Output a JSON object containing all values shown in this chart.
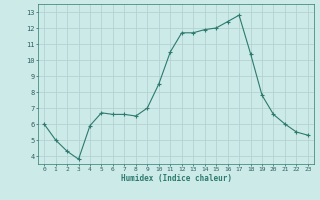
{
  "x": [
    0,
    1,
    2,
    3,
    4,
    5,
    6,
    7,
    8,
    9,
    10,
    11,
    12,
    13,
    14,
    15,
    16,
    17,
    18,
    19,
    20,
    21,
    22,
    23
  ],
  "y": [
    6.0,
    5.0,
    4.3,
    3.8,
    5.9,
    6.7,
    6.6,
    6.6,
    6.5,
    7.0,
    8.5,
    10.5,
    11.7,
    11.7,
    11.9,
    12.0,
    12.4,
    12.8,
    10.4,
    7.8,
    6.6,
    6.0,
    5.5,
    5.3
  ],
  "line_color": "#2d7a6e",
  "marker": "+",
  "marker_size": 3,
  "bg_color": "#cceae7",
  "grid_color": "#b0cece",
  "xlabel": "Humidex (Indice chaleur)",
  "ylabel_ticks": [
    4,
    5,
    6,
    7,
    8,
    9,
    10,
    11,
    12,
    13
  ],
  "xlim": [
    -0.5,
    23.5
  ],
  "ylim": [
    3.5,
    13.5
  ]
}
